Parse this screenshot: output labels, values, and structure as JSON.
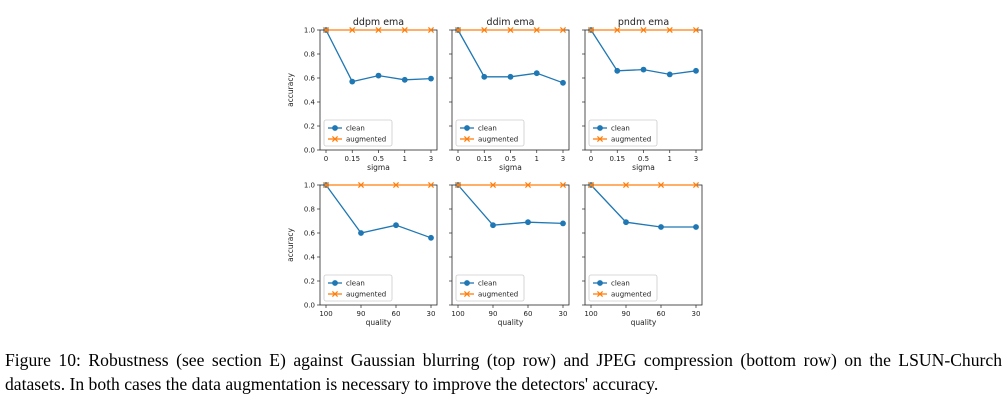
{
  "caption": "Figure 10: Robustness (see section E) against Gaussian blurring (top row) and JPEG compression (bottom row) on the LSUN-Church datasets. In both cases the data augmentation is necessary to improve the detectors' accuracy.",
  "colors": {
    "clean": "#1f77b4",
    "augmented": "#ff7f0e"
  },
  "chart_data": [
    {
      "type": "line",
      "title": "ddpm ema",
      "xlabel": "sigma",
      "ylabel": "accuracy",
      "categories": [
        "0",
        "0.15",
        "0.5",
        "1",
        "3"
      ],
      "ylim": [
        0,
        1.0
      ],
      "yticks": [
        "0.0",
        "0.2",
        "0.4",
        "0.6",
        "0.8",
        "1.0"
      ],
      "legend": "lower-left",
      "series": [
        {
          "name": "clean",
          "marker": "o",
          "values": [
            1.0,
            0.57,
            0.62,
            0.585,
            0.595
          ]
        },
        {
          "name": "augmented",
          "marker": "x",
          "values": [
            1.0,
            1.0,
            1.0,
            1.0,
            1.0
          ]
        }
      ]
    },
    {
      "type": "line",
      "title": "ddim ema",
      "xlabel": "sigma",
      "ylabel": "",
      "categories": [
        "0",
        "0.15",
        "0.5",
        "1",
        "3"
      ],
      "ylim": [
        0,
        1.0
      ],
      "yticks": [],
      "legend": "lower-left",
      "series": [
        {
          "name": "clean",
          "marker": "o",
          "values": [
            1.0,
            0.61,
            0.61,
            0.64,
            0.56
          ]
        },
        {
          "name": "augmented",
          "marker": "x",
          "values": [
            1.0,
            1.0,
            1.0,
            1.0,
            1.0
          ]
        }
      ]
    },
    {
      "type": "line",
      "title": "pndm ema",
      "xlabel": "sigma",
      "ylabel": "",
      "categories": [
        "0",
        "0.15",
        "0.5",
        "1",
        "3"
      ],
      "ylim": [
        0,
        1.0
      ],
      "yticks": [],
      "legend": "lower-left",
      "series": [
        {
          "name": "clean",
          "marker": "o",
          "values": [
            1.0,
            0.66,
            0.67,
            0.63,
            0.66
          ]
        },
        {
          "name": "augmented",
          "marker": "x",
          "values": [
            1.0,
            1.0,
            1.0,
            1.0,
            1.0
          ]
        }
      ]
    },
    {
      "type": "line",
      "title": "",
      "xlabel": "quality",
      "ylabel": "accuracy",
      "categories": [
        "100",
        "90",
        "60",
        "30"
      ],
      "ylim": [
        0,
        1.0
      ],
      "yticks": [
        "0.0",
        "0.2",
        "0.4",
        "0.6",
        "0.8",
        "1.0"
      ],
      "legend": "lower-left",
      "series": [
        {
          "name": "clean",
          "marker": "o",
          "values": [
            1.0,
            0.6,
            0.665,
            0.56
          ]
        },
        {
          "name": "augmented",
          "marker": "x",
          "values": [
            1.0,
            1.0,
            1.0,
            1.0
          ]
        }
      ]
    },
    {
      "type": "line",
      "title": "",
      "xlabel": "quality",
      "ylabel": "",
      "categories": [
        "100",
        "90",
        "60",
        "30"
      ],
      "ylim": [
        0,
        1.0
      ],
      "yticks": [],
      "legend": "lower-left",
      "series": [
        {
          "name": "clean",
          "marker": "o",
          "values": [
            1.0,
            0.665,
            0.69,
            0.68
          ]
        },
        {
          "name": "augmented",
          "marker": "x",
          "values": [
            1.0,
            1.0,
            1.0,
            1.0
          ]
        }
      ]
    },
    {
      "type": "line",
      "title": "",
      "xlabel": "quality",
      "ylabel": "",
      "categories": [
        "100",
        "90",
        "60",
        "30"
      ],
      "ylim": [
        0,
        1.0
      ],
      "yticks": [],
      "legend": "lower-left",
      "series": [
        {
          "name": "clean",
          "marker": "o",
          "values": [
            1.0,
            0.69,
            0.65,
            0.65
          ]
        },
        {
          "name": "augmented",
          "marker": "x",
          "values": [
            1.0,
            1.0,
            1.0,
            1.0
          ]
        }
      ]
    }
  ]
}
